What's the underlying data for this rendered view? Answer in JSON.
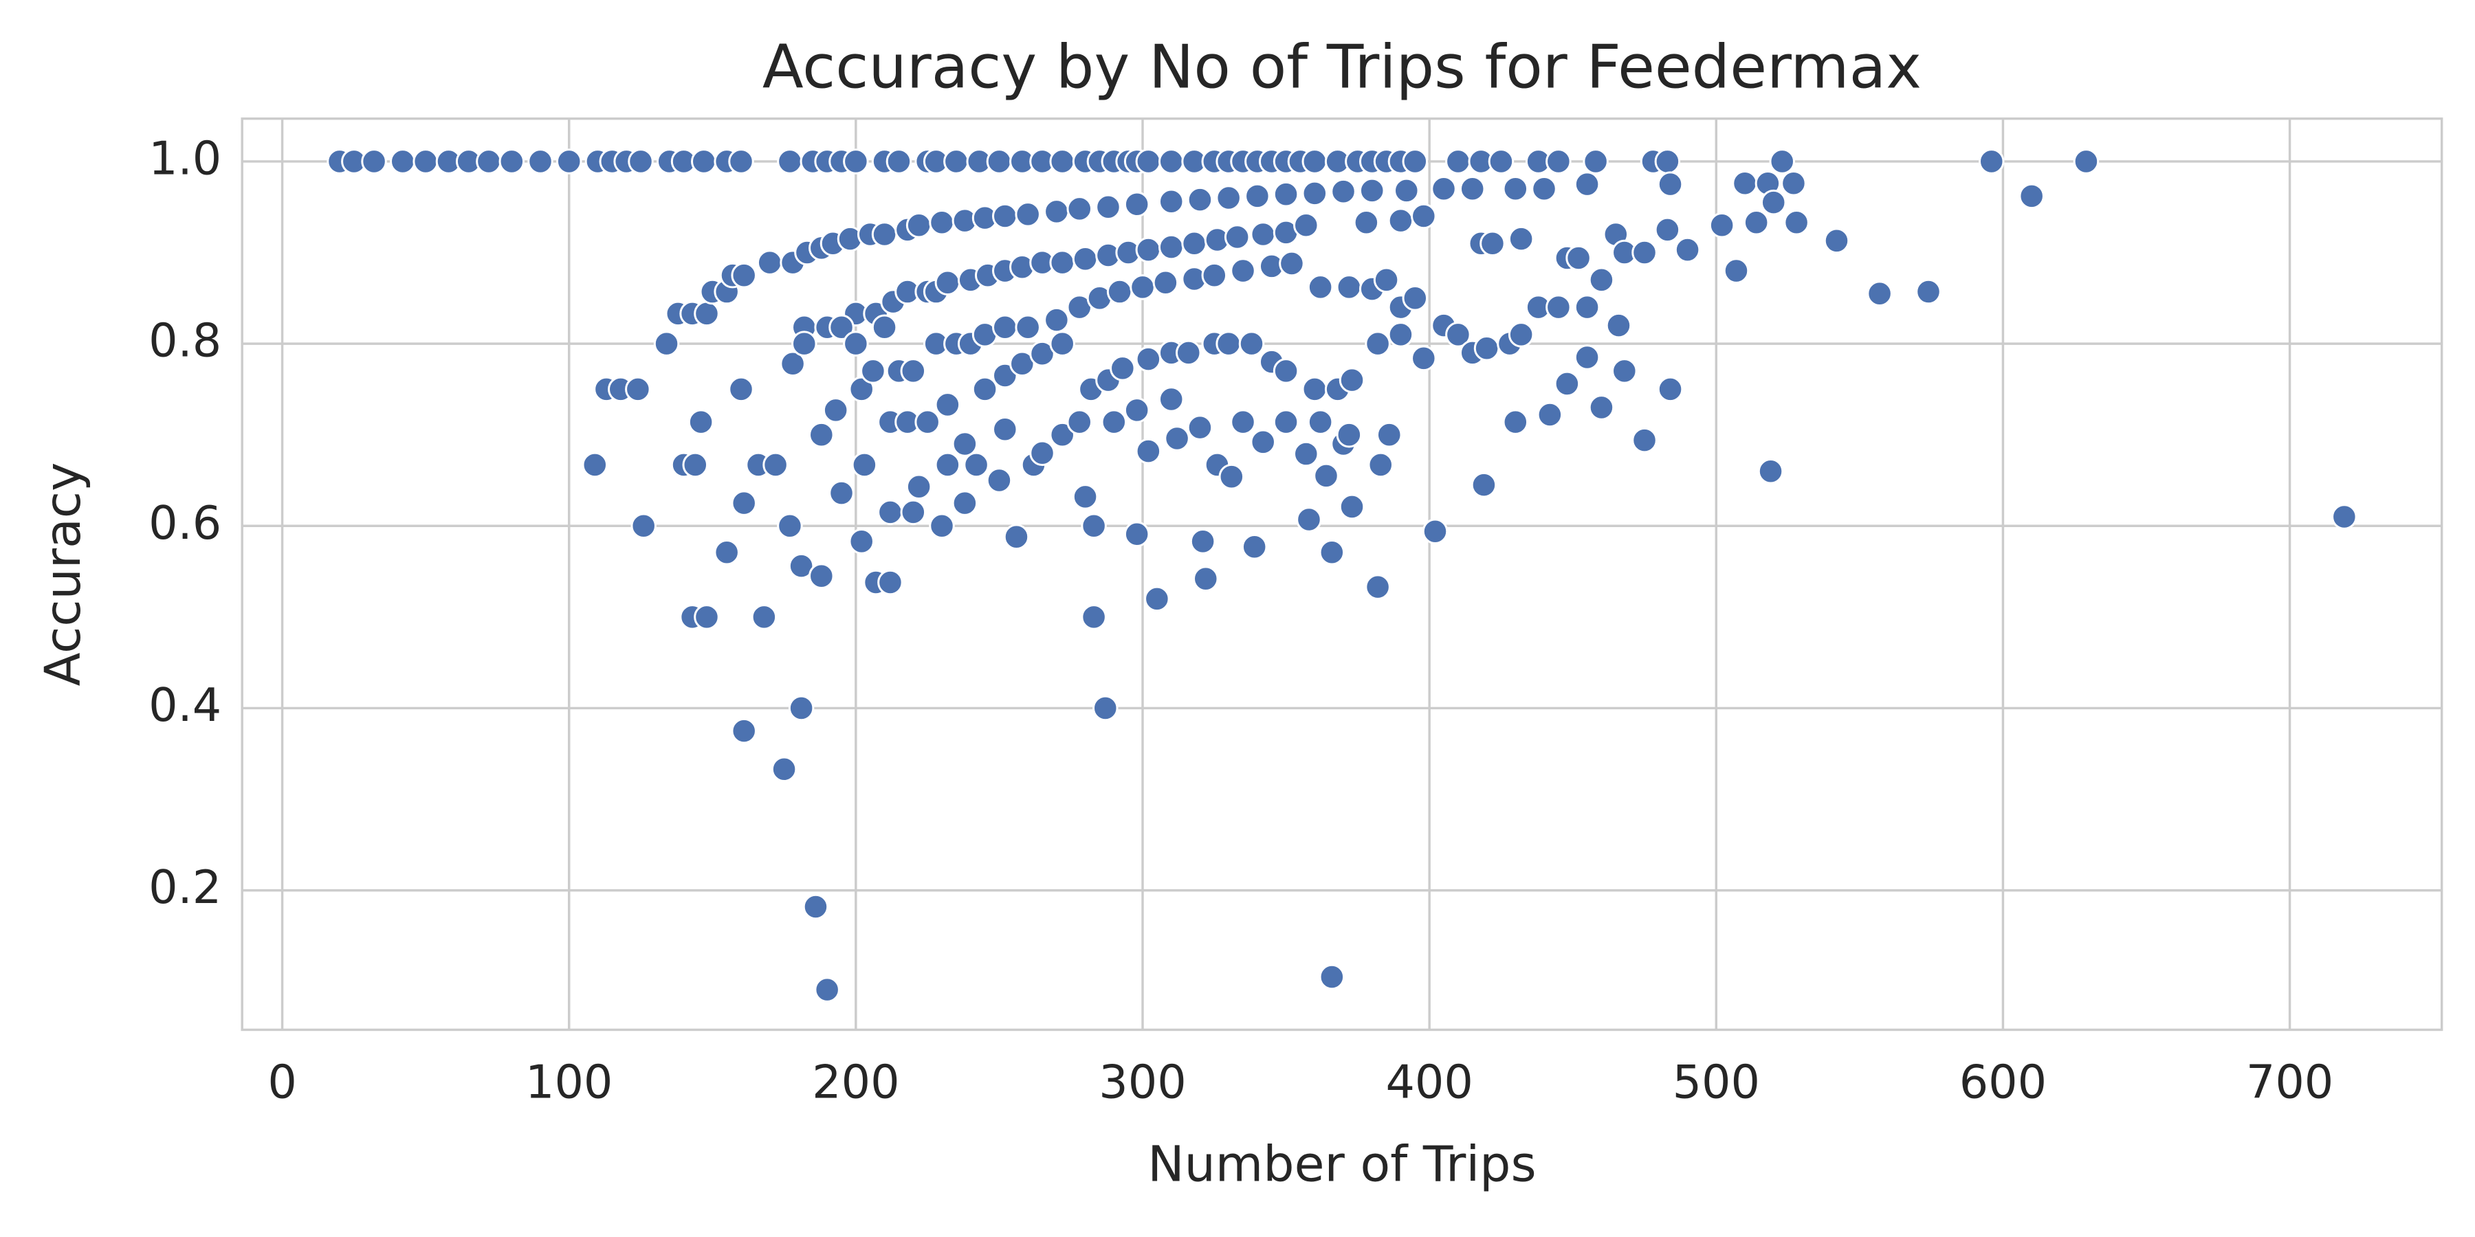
{
  "chart_data": {
    "type": "scatter",
    "title": "Accuracy by No of Trips for Feedermax",
    "x_label": "Number of Trips",
    "y_label": "Accuracy",
    "color": "#4c72b0",
    "grid": true,
    "xlim": [
      -14,
      753
    ],
    "ylim": [
      0.047,
      1.047
    ],
    "xticks": [
      0,
      100,
      200,
      300,
      400,
      500,
      600,
      700
    ],
    "yticks": [
      0.2,
      0.4,
      0.6,
      0.8,
      {
        "value": 1,
        "label": "1.0"
      }
    ],
    "x": [
      20,
      25,
      32,
      42,
      50,
      58,
      65,
      72,
      80,
      90,
      100,
      110,
      115,
      120,
      125,
      135,
      140,
      147,
      155,
      160,
      177,
      185,
      190,
      195,
      200,
      210,
      215,
      225,
      228,
      235,
      243,
      250,
      258,
      265,
      272,
      280,
      285,
      290,
      295,
      298,
      302,
      310,
      318,
      325,
      330,
      335,
      340,
      345,
      350,
      355,
      360,
      368,
      375,
      380,
      385,
      390,
      395,
      410,
      418,
      425,
      438,
      445,
      458,
      478,
      483,
      523,
      596,
      629,
      170,
      178,
      183,
      188,
      192,
      198,
      205,
      210,
      218,
      222,
      230,
      238,
      245,
      252,
      260,
      270,
      278,
      288,
      298,
      310,
      320,
      330,
      340,
      350,
      360,
      370,
      380,
      392,
      405,
      415,
      430,
      440,
      455,
      484,
      510,
      518,
      527,
      610,
      138,
      143,
      148,
      150,
      155,
      157,
      161,
      182,
      190,
      200,
      207,
      213,
      218,
      225,
      228,
      232,
      240,
      246,
      252,
      258,
      265,
      272,
      280,
      288,
      295,
      302,
      310,
      318,
      326,
      333,
      342,
      350,
      357,
      378,
      390,
      398,
      418,
      422,
      432,
      448,
      452,
      465,
      468,
      475,
      483,
      490,
      502,
      514,
      520,
      528,
      542,
      134,
      178,
      182,
      195,
      200,
      210,
      215,
      220,
      228,
      235,
      240,
      245,
      252,
      260,
      270,
      278,
      285,
      292,
      300,
      308,
      318,
      325,
      335,
      345,
      352,
      362,
      372,
      380,
      385,
      390,
      395,
      405,
      410,
      415,
      420,
      428,
      432,
      438,
      445,
      455,
      460,
      466,
      507,
      557,
      574,
      160,
      188,
      193,
      202,
      206,
      212,
      218,
      225,
      232,
      238,
      245,
      252,
      258,
      265,
      272,
      282,
      288,
      293,
      302,
      310,
      316,
      325,
      330,
      338,
      345,
      350,
      360,
      368,
      373,
      382,
      390,
      398,
      448,
      455,
      468,
      484,
      109,
      113,
      118,
      124,
      126,
      140,
      144,
      146,
      155,
      161,
      166,
      172,
      168,
      143,
      148,
      177,
      181,
      188,
      195,
      202,
      203,
      207,
      212,
      212,
      220,
      222,
      230,
      232,
      238,
      242,
      250,
      252,
      256,
      262,
      265,
      272,
      278,
      280,
      283,
      290,
      298,
      298,
      302,
      305,
      310,
      312,
      320,
      321,
      322,
      326,
      331,
      335,
      339,
      342,
      350,
      357,
      358,
      362,
      364,
      366,
      370,
      372,
      373,
      382,
      383,
      386,
      402,
      419,
      430,
      442,
      460,
      475,
      519,
      719,
      161,
      175,
      181,
      283,
      287,
      186,
      190,
      366
    ],
    "y": [
      1,
      1,
      1,
      1,
      1,
      1,
      1,
      1,
      1,
      1,
      1,
      1,
      1,
      1,
      1,
      1,
      1,
      1,
      1,
      1,
      1,
      1,
      1,
      1,
      1,
      1,
      1,
      1,
      1,
      1,
      1,
      1,
      1,
      1,
      1,
      1,
      1,
      1,
      1,
      1,
      1,
      1,
      1,
      1,
      1,
      1,
      1,
      1,
      1,
      1,
      1,
      1,
      1,
      1,
      1,
      1,
      1,
      1,
      1,
      1,
      1,
      1,
      1,
      1,
      1,
      1,
      1,
      1,
      0.889,
      0.889,
      0.9,
      0.905,
      0.91,
      0.915,
      0.92,
      0.92,
      0.925,
      0.93,
      0.933,
      0.935,
      0.938,
      0.94,
      0.942,
      0.945,
      0.948,
      0.95,
      0.953,
      0.956,
      0.958,
      0.96,
      0.962,
      0.964,
      0.965,
      0.967,
      0.968,
      0.968,
      0.97,
      0.97,
      0.97,
      0.97,
      0.975,
      0.975,
      0.976,
      0.976,
      0.976,
      0.962,
      0.833,
      0.833,
      0.833,
      0.857,
      0.857,
      0.875,
      0.875,
      0.818,
      0.818,
      0.833,
      0.833,
      0.846,
      0.857,
      0.857,
      0.857,
      0.867,
      0.87,
      0.875,
      0.88,
      0.884,
      0.889,
      0.889,
      0.893,
      0.897,
      0.9,
      0.903,
      0.906,
      0.91,
      0.914,
      0.917,
      0.92,
      0.922,
      0.93,
      0.933,
      0.935,
      0.94,
      0.91,
      0.91,
      0.915,
      0.894,
      0.894,
      0.92,
      0.9,
      0.9,
      0.925,
      0.903,
      0.93,
      0.933,
      0.955,
      0.933,
      0.913,
      0.8,
      0.778,
      0.8,
      0.818,
      0.8,
      0.818,
      0.77,
      0.77,
      0.8,
      0.8,
      0.8,
      0.81,
      0.818,
      0.818,
      0.826,
      0.84,
      0.85,
      0.857,
      0.862,
      0.867,
      0.871,
      0.875,
      0.88,
      0.885,
      0.888,
      0.862,
      0.862,
      0.86,
      0.87,
      0.84,
      0.85,
      0.82,
      0.81,
      0.79,
      0.795,
      0.8,
      0.81,
      0.84,
      0.84,
      0.84,
      0.87,
      0.82,
      0.88,
      0.855,
      0.857,
      0.75,
      0.7,
      0.727,
      0.75,
      0.77,
      0.714,
      0.714,
      0.714,
      0.733,
      0.69,
      0.75,
      0.765,
      0.778,
      0.789,
      0.8,
      0.75,
      0.76,
      0.773,
      0.783,
      0.79,
      0.79,
      0.8,
      0.8,
      0.8,
      0.78,
      0.77,
      0.75,
      0.75,
      0.76,
      0.8,
      0.81,
      0.784,
      0.756,
      0.785,
      0.77,
      0.75,
      0.667,
      0.75,
      0.75,
      0.75,
      0.6,
      0.667,
      0.667,
      0.714,
      0.571,
      0.625,
      0.667,
      0.667,
      0.5,
      0.5,
      0.5,
      0.6,
      0.556,
      0.545,
      0.636,
      0.583,
      0.667,
      0.538,
      0.538,
      0.615,
      0.615,
      0.643,
      0.6,
      0.667,
      0.625,
      0.667,
      0.65,
      0.706,
      0.588,
      0.667,
      0.68,
      0.7,
      0.714,
      0.632,
      0.6,
      0.714,
      0.727,
      0.591,
      0.682,
      0.52,
      0.739,
      0.696,
      0.708,
      0.583,
      0.542,
      0.667,
      0.654,
      0.714,
      0.577,
      0.692,
      0.714,
      0.679,
      0.607,
      0.714,
      0.655,
      0.571,
      0.69,
      0.7,
      0.621,
      0.533,
      0.667,
      0.7,
      0.594,
      0.645,
      0.714,
      0.722,
      0.73,
      0.694,
      0.66,
      0.61,
      0.375,
      0.333,
      0.4,
      0.5,
      0.4,
      0.182,
      0.091,
      0.105
    ]
  }
}
